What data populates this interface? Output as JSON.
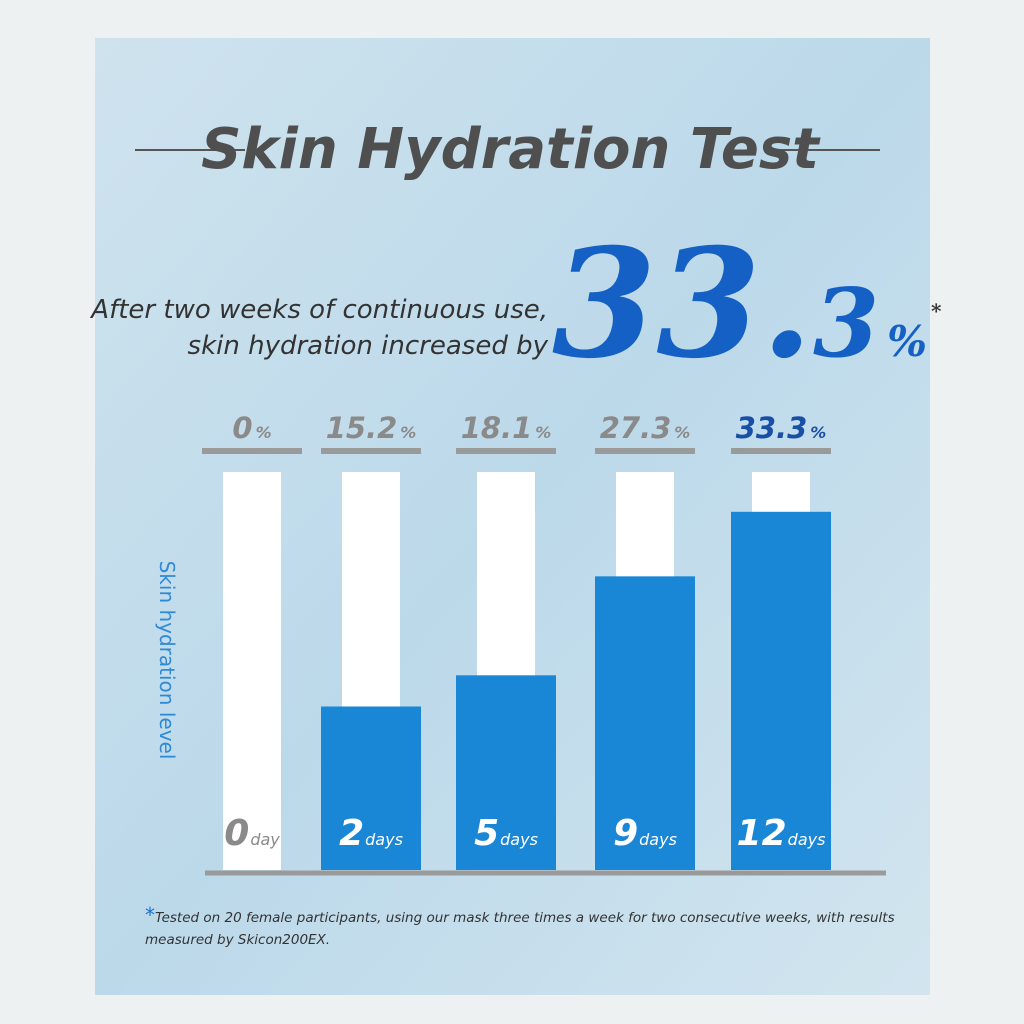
{
  "chart_data": {
    "type": "bar",
    "title": "Skin Hydration Test",
    "headline_lines": [
      "After two weeks of continuous use,",
      "skin hydration increased by"
    ],
    "headline_value_main": "33.",
    "headline_value_decimal": "3",
    "headline_unit": "%",
    "headline_mark": "*",
    "ylabel": "Skin hydration level",
    "categories": [
      "0",
      "2",
      "5",
      "9",
      "12"
    ],
    "category_units": [
      "day",
      "days",
      "days",
      "days",
      "days"
    ],
    "values": [
      0,
      15.2,
      18.1,
      27.3,
      33.3
    ],
    "value_labels": [
      "0%",
      "15.2%",
      "18.1%",
      "27.3%",
      "33.3%"
    ],
    "value_label_colors": [
      "#8a8a8a",
      "#8a8a8a",
      "#8a8a8a",
      "#8a8a8a",
      "#1a4fa8"
    ],
    "color": "#1a86d6",
    "ylim": [
      0,
      37
    ],
    "footnote_mark": "*",
    "footnote_lines": [
      "Tested on 20 female participants, using our mask three times a week for two consecutive weeks, with results",
      "measured by Skicon200EX."
    ]
  }
}
